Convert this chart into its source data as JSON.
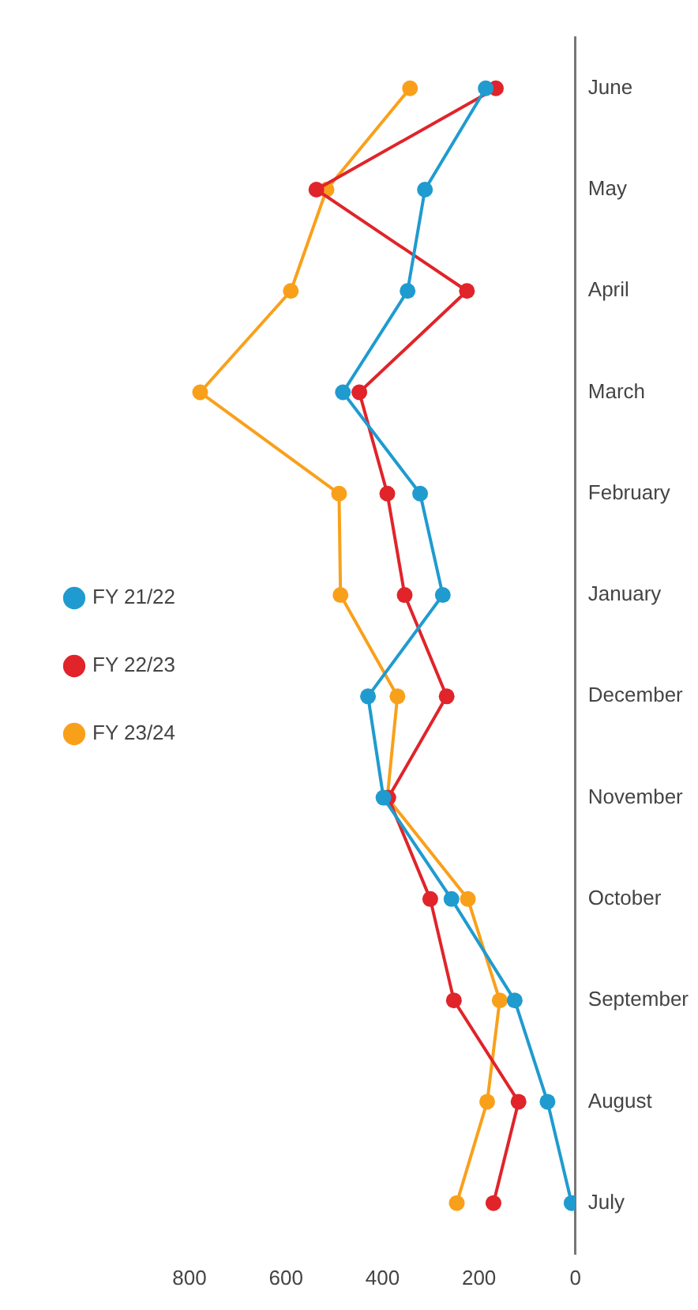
{
  "chart_data": {
    "type": "line",
    "orientation": "horizontal",
    "categories": [
      "June",
      "May",
      "April",
      "March",
      "February",
      "January",
      "December",
      "November",
      "October",
      "September",
      "August",
      "July"
    ],
    "series": [
      {
        "name": "FY 21/22",
        "color": "#1f9bcf",
        "values": [
          186,
          312,
          348,
          482,
          322,
          275,
          430,
          398,
          257,
          126,
          58,
          8
        ]
      },
      {
        "name": "FY 22/23",
        "color": "#e0242a",
        "values": [
          165,
          537,
          225,
          448,
          390,
          354,
          267,
          388,
          301,
          252,
          118,
          170
        ]
      },
      {
        "name": "FY 23/24",
        "color": "#f9a01b",
        "values": [
          343,
          516,
          590,
          778,
          490,
          487,
          369,
          390,
          223,
          157,
          183,
          246
        ]
      }
    ],
    "xlim": [
      800,
      0
    ],
    "xticks": [
      0,
      200,
      400,
      600,
      800
    ],
    "legend": "left",
    "marker": "circle",
    "line_style": "solid"
  }
}
